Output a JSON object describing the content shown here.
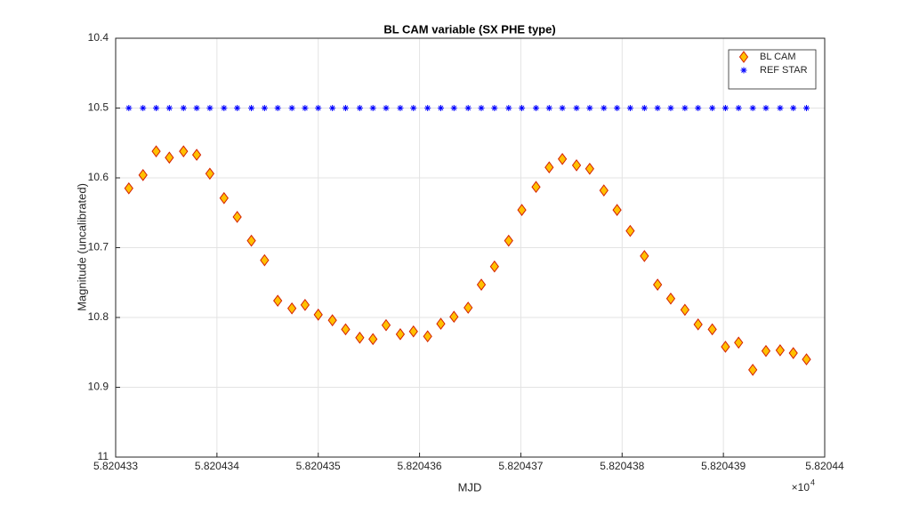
{
  "chart_data": {
    "type": "scatter",
    "title": "BL CAM variable (SX PHE type)",
    "x_label": "MJD",
    "y_label": "Magnitude (uncalibrated)",
    "x_multiplier": {
      "base": "×10",
      "exponent": "4"
    },
    "x": [
      5.82043313,
      5.82043327,
      5.8204334,
      5.82043353,
      5.82043367,
      5.8204338,
      5.82043393,
      5.82043407,
      5.8204342,
      5.82043434,
      5.82043447,
      5.8204346,
      5.82043474,
      5.82043487,
      5.820435,
      5.82043514,
      5.82043527,
      5.82043541,
      5.82043554,
      5.82043567,
      5.82043581,
      5.82043594,
      5.82043608,
      5.82043621,
      5.82043634,
      5.82043648,
      5.82043661,
      5.82043674,
      5.82043688,
      5.82043701,
      5.82043715,
      5.82043728,
      5.82043741,
      5.82043755,
      5.82043768,
      5.82043782,
      5.82043795,
      5.82043808,
      5.82043822,
      5.82043835,
      5.82043848,
      5.82043862,
      5.82043875,
      5.82043889,
      5.82043902,
      5.82043915,
      5.82043929,
      5.82043942,
      5.82043956,
      5.82043969,
      5.82043982
    ],
    "series": [
      {
        "name": "BL CAM",
        "color": "#ffc000",
        "edge_color": "#d42000",
        "marker": "diamond",
        "values": [
          10.615,
          10.596,
          10.562,
          10.571,
          10.562,
          10.567,
          10.594,
          10.629,
          10.656,
          10.69,
          10.718,
          10.776,
          10.787,
          10.782,
          10.796,
          10.804,
          10.817,
          10.829,
          10.831,
          10.811,
          10.824,
          10.82,
          10.827,
          10.809,
          10.799,
          10.786,
          10.753,
          10.727,
          10.69,
          10.646,
          10.613,
          10.585,
          10.573,
          10.582,
          10.587,
          10.618,
          10.646,
          10.676,
          10.712,
          10.753,
          10.773,
          10.789,
          10.81,
          10.817,
          10.842,
          10.836,
          10.875,
          10.848,
          10.847,
          10.851,
          10.86
        ]
      },
      {
        "name": "REF STAR",
        "color": "#0000ff",
        "marker": "asterisk",
        "values": [
          10.5,
          10.5,
          10.5,
          10.5,
          10.5,
          10.5,
          10.5,
          10.5,
          10.5,
          10.5,
          10.5,
          10.5,
          10.5,
          10.5,
          10.5,
          10.5,
          10.5,
          10.5,
          10.5,
          10.5,
          10.5,
          10.5,
          10.5,
          10.5,
          10.5,
          10.5,
          10.5,
          10.5,
          10.5,
          10.5,
          10.5,
          10.5,
          10.5,
          10.5,
          10.5,
          10.5,
          10.5,
          10.5,
          10.5,
          10.5,
          10.5,
          10.5,
          10.5,
          10.5,
          10.5,
          10.5,
          10.5,
          10.5,
          10.5,
          10.5,
          10.5
        ]
      }
    ],
    "xlim": [
      5.820433,
      5.82044
    ],
    "xticks": [
      5.820433,
      5.820434,
      5.820435,
      5.820436,
      5.820437,
      5.820438,
      5.820439,
      5.82044
    ],
    "ylim": [
      10.4,
      11
    ],
    "y_reversed": true,
    "yticks": [
      10.4,
      10.5,
      10.6,
      10.7,
      10.8,
      10.9,
      11
    ],
    "grid": true,
    "legend": "upper right"
  }
}
